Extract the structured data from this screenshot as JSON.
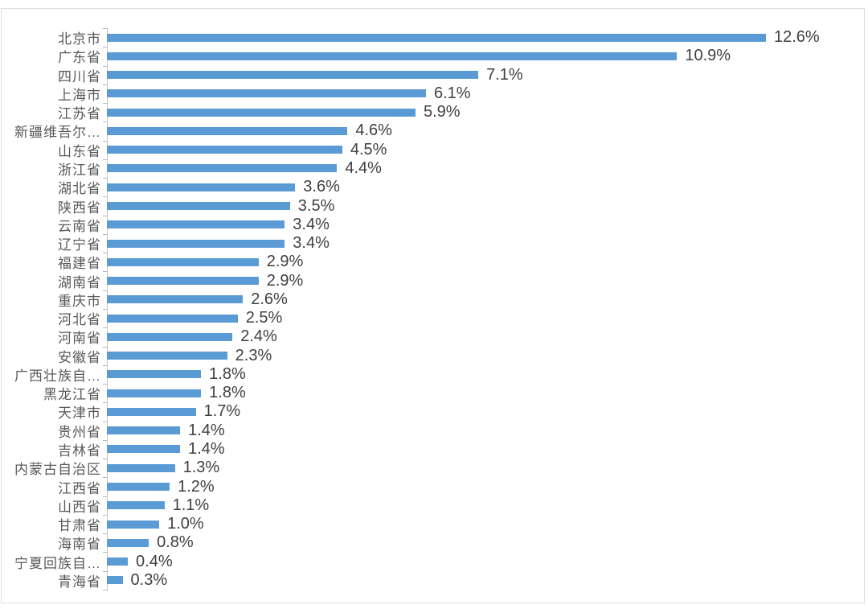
{
  "chart_data": {
    "type": "bar",
    "orientation": "horizontal",
    "title": "",
    "xlabel": "",
    "ylabel": "",
    "grid": false,
    "value_axis_visible": false,
    "category_axis_visible": true,
    "xlim": [
      0,
      13
    ],
    "categories": [
      "北京市",
      "广东省",
      "四川省",
      "上海市",
      "江苏省",
      "新疆维吾尔…",
      "山东省",
      "浙江省",
      "湖北省",
      "陕西省",
      "云南省",
      "辽宁省",
      "福建省",
      "湖南省",
      "重庆市",
      "河北省",
      "河南省",
      "安徽省",
      "广西壮族自…",
      "黑龙江省",
      "天津市",
      "贵州省",
      "吉林省",
      "内蒙古自治区",
      "江西省",
      "山西省",
      "甘肃省",
      "海南省",
      "宁夏回族自…",
      "青海省"
    ],
    "values": [
      12.6,
      10.9,
      7.1,
      6.1,
      5.9,
      4.6,
      4.5,
      4.4,
      3.6,
      3.5,
      3.4,
      3.4,
      2.9,
      2.9,
      2.6,
      2.5,
      2.4,
      2.3,
      1.8,
      1.8,
      1.7,
      1.4,
      1.4,
      1.3,
      1.2,
      1.1,
      1.0,
      0.8,
      0.4,
      0.3
    ],
    "value_labels": [
      "12.6%",
      "10.9%",
      "7.1%",
      "6.1%",
      "5.9%",
      "4.6%",
      "4.5%",
      "4.4%",
      "3.6%",
      "3.5%",
      "3.4%",
      "3.4%",
      "2.9%",
      "2.9%",
      "2.6%",
      "2.5%",
      "2.4%",
      "2.3%",
      "1.8%",
      "1.8%",
      "1.7%",
      "1.4%",
      "1.4%",
      "1.3%",
      "1.2%",
      "1.1%",
      "1.0%",
      "0.8%",
      "0.4%",
      "0.3%"
    ],
    "colors": {
      "bar": "#5b9bd5",
      "category_label": "#595959",
      "value_label": "#404040",
      "axis_line": "#c4c4c4",
      "tick": "#b9b9b9",
      "frame_border": "#dedede",
      "background": "#ffffff"
    }
  }
}
